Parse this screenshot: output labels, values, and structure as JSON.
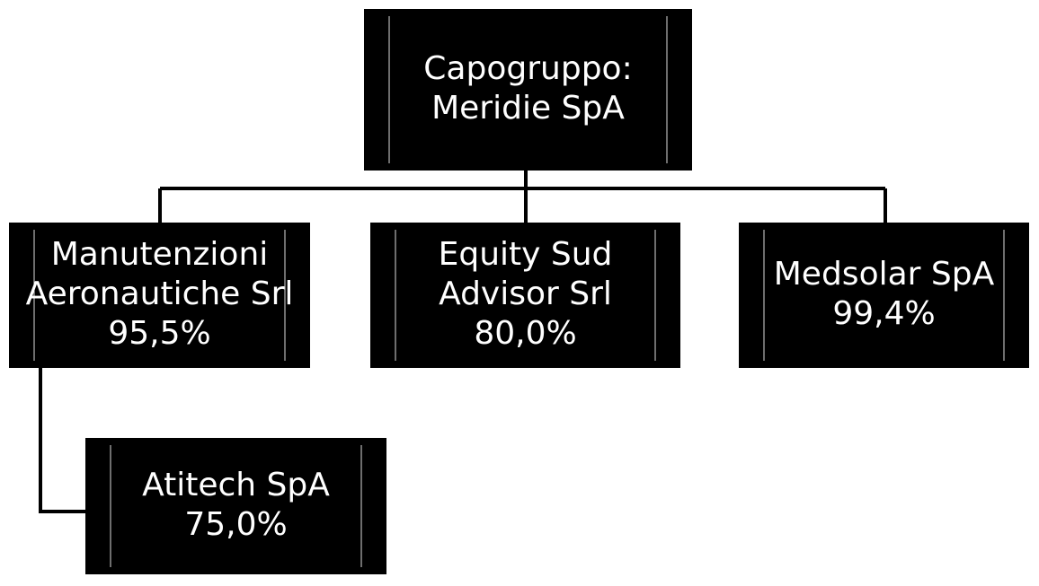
{
  "nodes": [
    {
      "lines": [
        "Capogruppo:",
        "Meridie SpA"
      ]
    },
    {
      "lines": [
        "Manutenzioni",
        "Aeronautiche Srl",
        "95,5%"
      ]
    },
    {
      "lines": [
        "Equity Sud",
        "Advisor Srl",
        "80,0%"
      ]
    },
    {
      "lines": [
        "Medsolar SpA",
        "99,4%"
      ]
    },
    {
      "lines": [
        "Atitech SpA",
        "75,0%"
      ]
    }
  ]
}
